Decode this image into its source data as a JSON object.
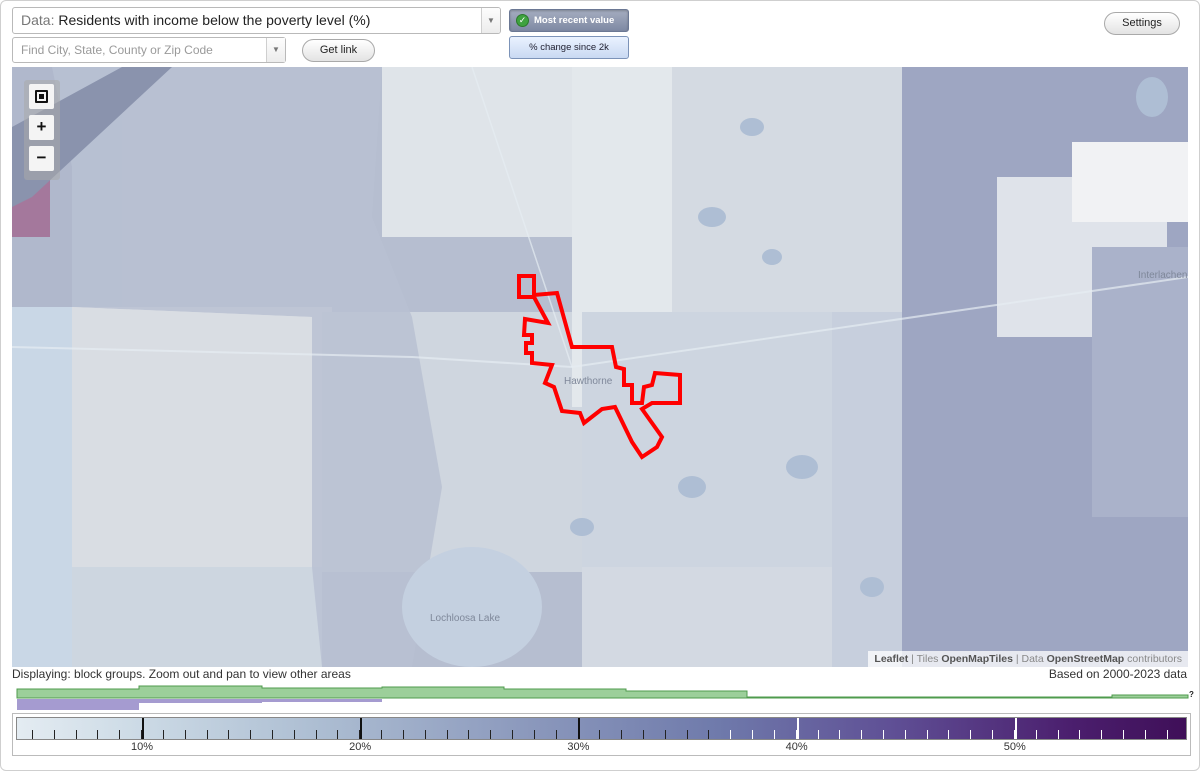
{
  "data_select": {
    "prefix": "Data:",
    "value": "Residents with income below the poverty level (%)"
  },
  "search": {
    "placeholder": "Find City, State, County or Zip Code"
  },
  "buttons": {
    "get_link": "Get link",
    "settings": "Settings",
    "most_recent": "Most recent value",
    "pct_change": "% change since 2k"
  },
  "map": {
    "labels": {
      "hawthorne": "Hawthorne",
      "lochloosa": "Lochloosa Lake",
      "interlachen": "Interlachen"
    },
    "attribution": {
      "leaflet": "Leaflet",
      "tiles_prefix": "Tiles",
      "tiles": "OpenMapTiles",
      "data_prefix": "Data",
      "osm": "OpenStreetMap",
      "suffix": "contributors"
    },
    "highlight_color": "#ff0000"
  },
  "status": {
    "displaying": "Displaying: block groups. Zoom out and pan to view other areas",
    "based_on": "Based on 2000-2023 data"
  },
  "histogram": {
    "help_mark": "?"
  },
  "legend": {
    "tick_labels": [
      "10%",
      "20%",
      "30%",
      "40%",
      "50%"
    ],
    "color_low": "#e4ecf2",
    "color_high": "#3f0f58"
  }
}
